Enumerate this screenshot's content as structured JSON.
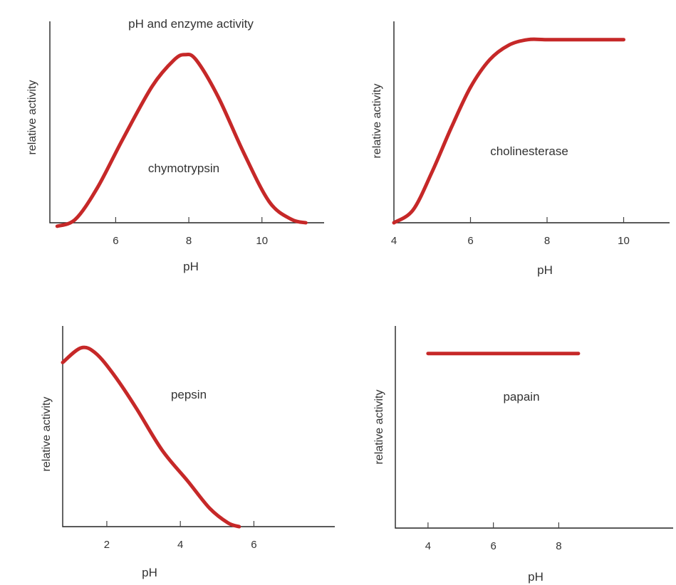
{
  "title": "pH and enzyme activity",
  "chart_data": [
    {
      "type": "line",
      "xlabel": "pH",
      "ylabel": "relative activity",
      "annotation": "chymotrypsin",
      "xlim": [
        4.2,
        11.7
      ],
      "ylim": [
        0,
        1.15
      ],
      "xticks": [
        6,
        8,
        10
      ],
      "tick_labels": [
        "6",
        "8",
        "10"
      ],
      "series": [
        {
          "color": "#c62828",
          "x": [
            4.4,
            4.9,
            5.5,
            6.2,
            7.0,
            7.6,
            7.9,
            8.2,
            8.8,
            9.5,
            10.2,
            10.8,
            11.2
          ],
          "y": [
            -0.02,
            0.02,
            0.2,
            0.48,
            0.78,
            0.93,
            0.96,
            0.93,
            0.72,
            0.4,
            0.12,
            0.02,
            0.0
          ]
        }
      ]
    },
    {
      "type": "line",
      "xlabel": "pH",
      "ylabel": "relative activity",
      "annotation": "cholinesterase",
      "xlim": [
        4,
        11.2
      ],
      "ylim": [
        0,
        1.1
      ],
      "xticks": [
        4,
        6,
        8,
        10
      ],
      "tick_labels": [
        "4",
        "6",
        "8",
        "10"
      ],
      "series": [
        {
          "color": "#c62828",
          "x": [
            4.0,
            4.5,
            5.0,
            5.5,
            6.0,
            6.5,
            7.0,
            7.5,
            8.0,
            9.0,
            10.0
          ],
          "y": [
            0.0,
            0.07,
            0.28,
            0.52,
            0.74,
            0.89,
            0.97,
            1.0,
            1.0,
            1.0,
            1.0
          ]
        }
      ]
    },
    {
      "type": "line",
      "xlabel": "pH",
      "ylabel": "relative activity",
      "annotation": "pepsin",
      "xlim": [
        0.8,
        8.2
      ],
      "ylim": [
        0,
        1.1
      ],
      "xticks": [
        2,
        4,
        6
      ],
      "tick_labels": [
        "2",
        "4",
        "6"
      ],
      "series": [
        {
          "color": "#c62828",
          "x": [
            0.8,
            1.3,
            1.7,
            2.2,
            2.8,
            3.5,
            4.2,
            4.8,
            5.3,
            5.6
          ],
          "y": [
            0.9,
            0.98,
            0.95,
            0.83,
            0.65,
            0.42,
            0.25,
            0.1,
            0.02,
            0.0
          ]
        }
      ]
    },
    {
      "type": "line",
      "xlabel": "pH",
      "ylabel": "relative activity",
      "annotation": "papain",
      "xlim": [
        3,
        11.5
      ],
      "ylim": [
        0,
        1.1
      ],
      "xticks": [
        4,
        6,
        8
      ],
      "tick_labels": [
        "4",
        "6",
        "8"
      ],
      "series": [
        {
          "color": "#c62828",
          "x": [
            4.0,
            8.6
          ],
          "y": [
            0.95,
            0.95
          ]
        }
      ]
    }
  ]
}
